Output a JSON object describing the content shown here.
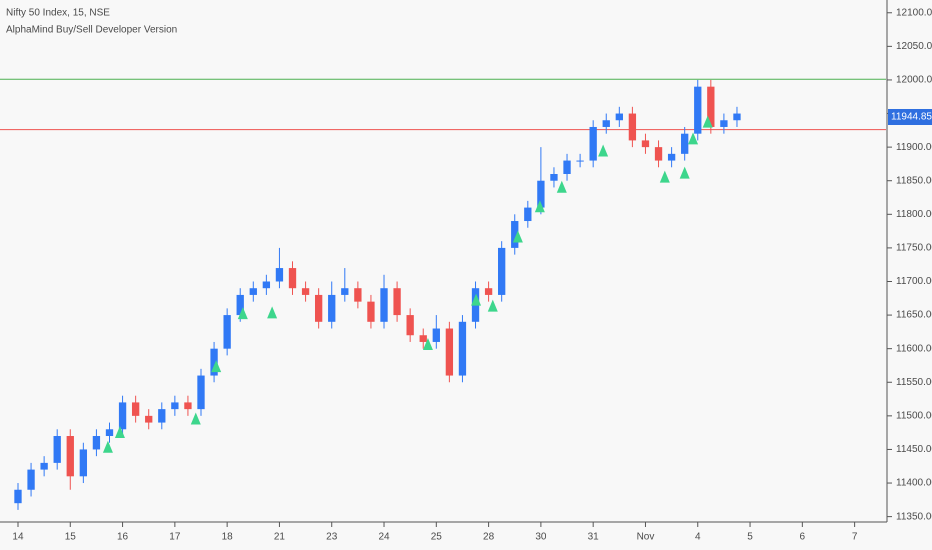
{
  "chart_data": {
    "type": "candlestick",
    "title": "Nifty 50 Index, 15, NSE",
    "subtitle": "AlphaMind Buy/Sell Developer Version",
    "up_color": "#3179f5",
    "down_color": "#ef5350",
    "signal_color": "#3dd68c",
    "xlim": [
      -0.344,
      16.6
    ],
    "ylim": [
      11342,
      12119
    ],
    "grid": false,
    "xticks": [
      {
        "value": 0,
        "label": "14"
      },
      {
        "value": 1,
        "label": "15"
      },
      {
        "value": 2,
        "label": "16"
      },
      {
        "value": 3,
        "label": "17"
      },
      {
        "value": 4,
        "label": "18"
      },
      {
        "value": 5,
        "label": "21"
      },
      {
        "value": 6,
        "label": "23"
      },
      {
        "value": 7,
        "label": "24"
      },
      {
        "value": 8,
        "label": "25"
      },
      {
        "value": 9,
        "label": "28"
      },
      {
        "value": 10,
        "label": "30"
      },
      {
        "value": 11,
        "label": "31"
      },
      {
        "value": 12,
        "label": "Nov"
      },
      {
        "value": 13,
        "label": "4"
      },
      {
        "value": 14,
        "label": "5"
      },
      {
        "value": 15,
        "label": "6"
      },
      {
        "value": 16,
        "label": "7"
      }
    ],
    "yticks": [
      {
        "value": 11350,
        "label": "11350.00"
      },
      {
        "value": 11400,
        "label": "11400.00"
      },
      {
        "value": 11450,
        "label": "11450.00"
      },
      {
        "value": 11500,
        "label": "11500.00"
      },
      {
        "value": 11550,
        "label": "11550.00"
      },
      {
        "value": 11600,
        "label": "11600.00"
      },
      {
        "value": 11650,
        "label": "11650.00"
      },
      {
        "value": 11700,
        "label": "11700.00"
      },
      {
        "value": 11750,
        "label": "11750.00"
      },
      {
        "value": 11800,
        "label": "11800.00"
      },
      {
        "value": 11850,
        "label": "11850.00"
      },
      {
        "value": 11900,
        "label": "11900.00"
      },
      {
        "value": 11950,
        "label": "11950.00"
      },
      {
        "value": 12000,
        "label": "12000.00"
      },
      {
        "value": 12050,
        "label": "12050.00"
      },
      {
        "value": 12100,
        "label": "12100.00"
      }
    ],
    "candles": {
      "x": [
        0,
        0.25,
        0.5,
        0.75,
        1,
        1.25,
        1.5,
        1.75,
        2,
        2.25,
        2.5,
        2.75,
        3,
        3.25,
        3.5,
        3.75,
        4,
        4.25,
        4.5,
        4.75,
        5,
        5.25,
        5.5,
        5.75,
        6,
        6.25,
        6.5,
        6.75,
        7,
        7.25,
        7.5,
        7.75,
        8,
        8.25,
        8.5,
        8.75,
        9,
        9.25,
        9.5,
        9.75,
        10,
        10.25,
        10.5,
        10.75,
        11,
        11.25,
        11.5,
        11.75,
        12,
        12.25,
        12.5,
        12.75,
        13,
        13.25,
        13.5,
        13.75
      ],
      "open": [
        11370,
        11390,
        11420,
        11430,
        11470,
        11410,
        11450,
        11470,
        11480,
        11520,
        11500,
        11490,
        11510,
        11520,
        11510,
        11560,
        11600,
        11650,
        11680,
        11690,
        11700,
        11720,
        11690,
        11680,
        11640,
        11680,
        11690,
        11670,
        11640,
        11690,
        11650,
        11620,
        11610,
        11630,
        11560,
        11640,
        11690,
        11680,
        11750,
        11790,
        11810,
        11850,
        11860,
        11880,
        11880,
        11930,
        11940,
        11950,
        11910,
        11900,
        11880,
        11890,
        11920,
        11990,
        11930,
        11940
      ],
      "high": [
        11400,
        11430,
        11440,
        11480,
        11480,
        11460,
        11480,
        11490,
        11530,
        11530,
        11510,
        11520,
        11530,
        11530,
        11570,
        11610,
        11660,
        11690,
        11700,
        11710,
        11750,
        11730,
        11700,
        11690,
        11700,
        11720,
        11700,
        11680,
        11710,
        11700,
        11660,
        11630,
        11650,
        11640,
        11650,
        11700,
        11700,
        11760,
        11800,
        11820,
        11900,
        11870,
        11890,
        11890,
        11940,
        11950,
        11960,
        11960,
        11920,
        11910,
        11900,
        11930,
        12000,
        12000,
        11950,
        11960
      ],
      "low": [
        11360,
        11380,
        11410,
        11420,
        11390,
        11400,
        11440,
        11460,
        11470,
        11490,
        11480,
        11480,
        11500,
        11500,
        11500,
        11550,
        11590,
        11640,
        11670,
        11680,
        11690,
        11680,
        11670,
        11630,
        11630,
        11670,
        11660,
        11630,
        11630,
        11640,
        11610,
        11600,
        11600,
        11550,
        11550,
        11630,
        11670,
        11670,
        11740,
        11780,
        11800,
        11840,
        11850,
        11870,
        11870,
        11920,
        11930,
        11900,
        11890,
        11870,
        11870,
        11880,
        11910,
        11920,
        11920,
        11930
      ],
      "close": [
        11390,
        11420,
        11430,
        11470,
        11410,
        11450,
        11470,
        11480,
        11520,
        11500,
        11490,
        11510,
        11520,
        11510,
        11560,
        11600,
        11650,
        11680,
        11690,
        11700,
        11720,
        11690,
        11680,
        11640,
        11680,
        11690,
        11670,
        11640,
        11690,
        11650,
        11620,
        11610,
        11630,
        11560,
        11640,
        11690,
        11680,
        11750,
        11790,
        11810,
        11850,
        11860,
        11880,
        11880,
        11930,
        11940,
        11950,
        11910,
        11900,
        11880,
        11890,
        11920,
        11990,
        11930,
        11940,
        11950
      ]
    },
    "signals": {
      "x": [
        1.72,
        1.95,
        3.4,
        3.79,
        4.3,
        4.86,
        7.84,
        8.76,
        9.08,
        9.56,
        9.98,
        10.4,
        11.19,
        12.37,
        12.75,
        12.91,
        13.19
      ],
      "y": [
        11454,
        11476,
        11496,
        11574,
        11653,
        11654,
        11607,
        11673,
        11664,
        11767,
        11812,
        11841,
        11895,
        11856,
        11862,
        11913,
        11938
      ]
    },
    "levels": [
      {
        "value": 12001,
        "color": "#4caf50"
      },
      {
        "value": 11926,
        "color": "#ef5350"
      }
    ],
    "last_price": 11944.85,
    "last_price_color": "#2f6fe0"
  }
}
